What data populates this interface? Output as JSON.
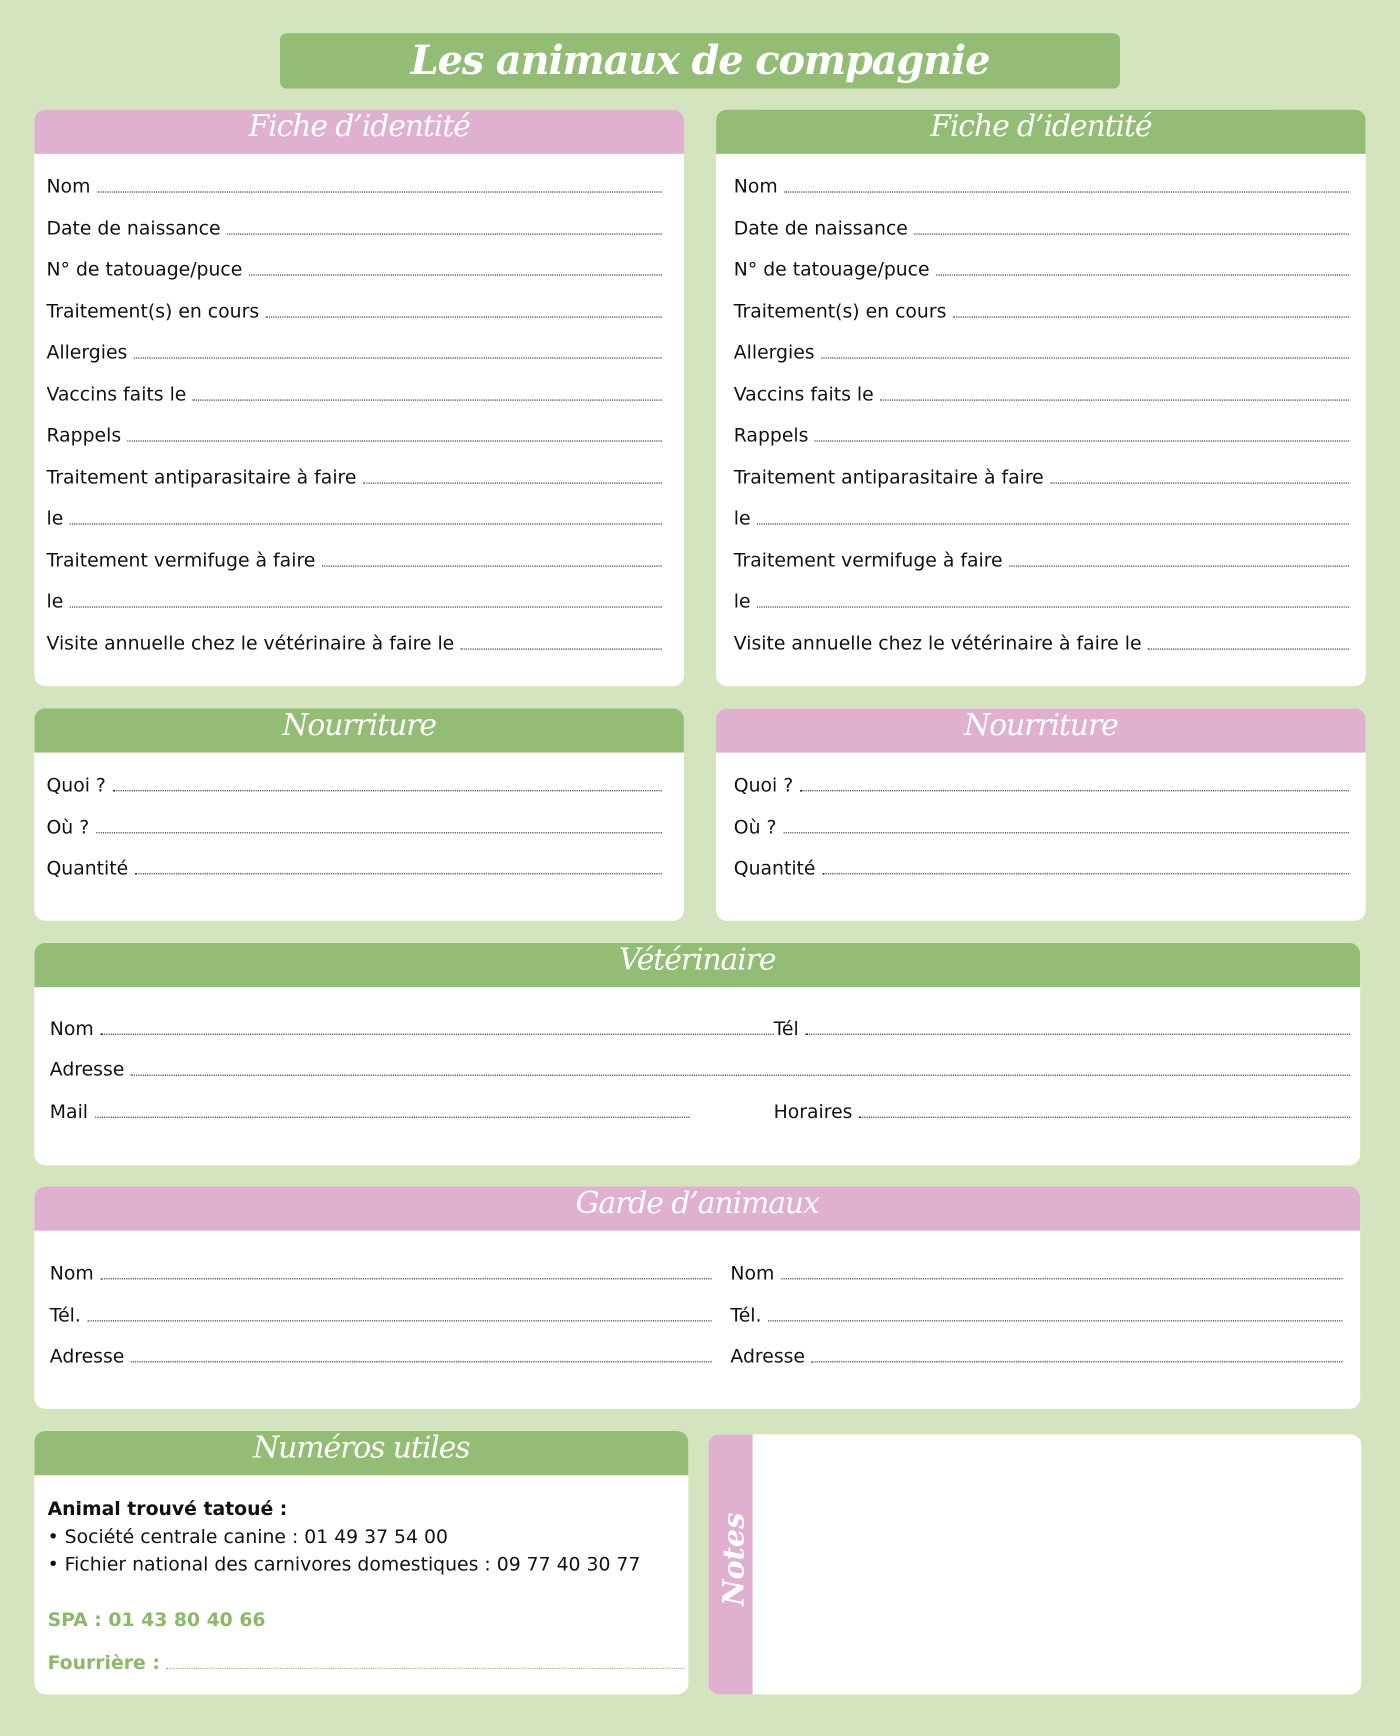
{
  "title": "Les animaux de compagnie",
  "colors": {
    "green": "#93bd74",
    "pink": "#e0b0d0",
    "background": "#d3e4bf"
  },
  "fiche": {
    "heading": "Fiche d’identité",
    "fields": [
      "Nom",
      "Date de naissance",
      "N° de tatouage/puce",
      "Traitement(s) en cours",
      "Allergies",
      "Vaccins faits le",
      "Rappels",
      "Traitement antiparasitaire à faire",
      "le",
      "Traitement vermifuge à faire",
      "le",
      "Visite annuelle chez le vétérinaire à faire le"
    ]
  },
  "nourriture": {
    "heading": "Nourriture",
    "fields": [
      "Quoi ?",
      "Où ?",
      "Quantité"
    ]
  },
  "veterinaire": {
    "heading": "Vétérinaire",
    "nom": "Nom",
    "tel": "Tél",
    "adresse": "Adresse",
    "mail": "Mail",
    "horaires": "Horaires"
  },
  "garde": {
    "heading": "Garde d’animaux",
    "fields": [
      "Nom",
      "Tél.",
      "Adresse"
    ]
  },
  "numeros": {
    "heading": "Numéros utiles",
    "found": "Animal trouvé tatoué :",
    "line1": "• Société centrale canine : 01 49 37 54 00",
    "line2": "• Fichier national des carnivores domestiques : 09 77 40 30 77",
    "spa": "SPA : 01 43 80 40 66",
    "fourriere": "Fourrière :"
  },
  "notes": {
    "label": "Notes"
  }
}
